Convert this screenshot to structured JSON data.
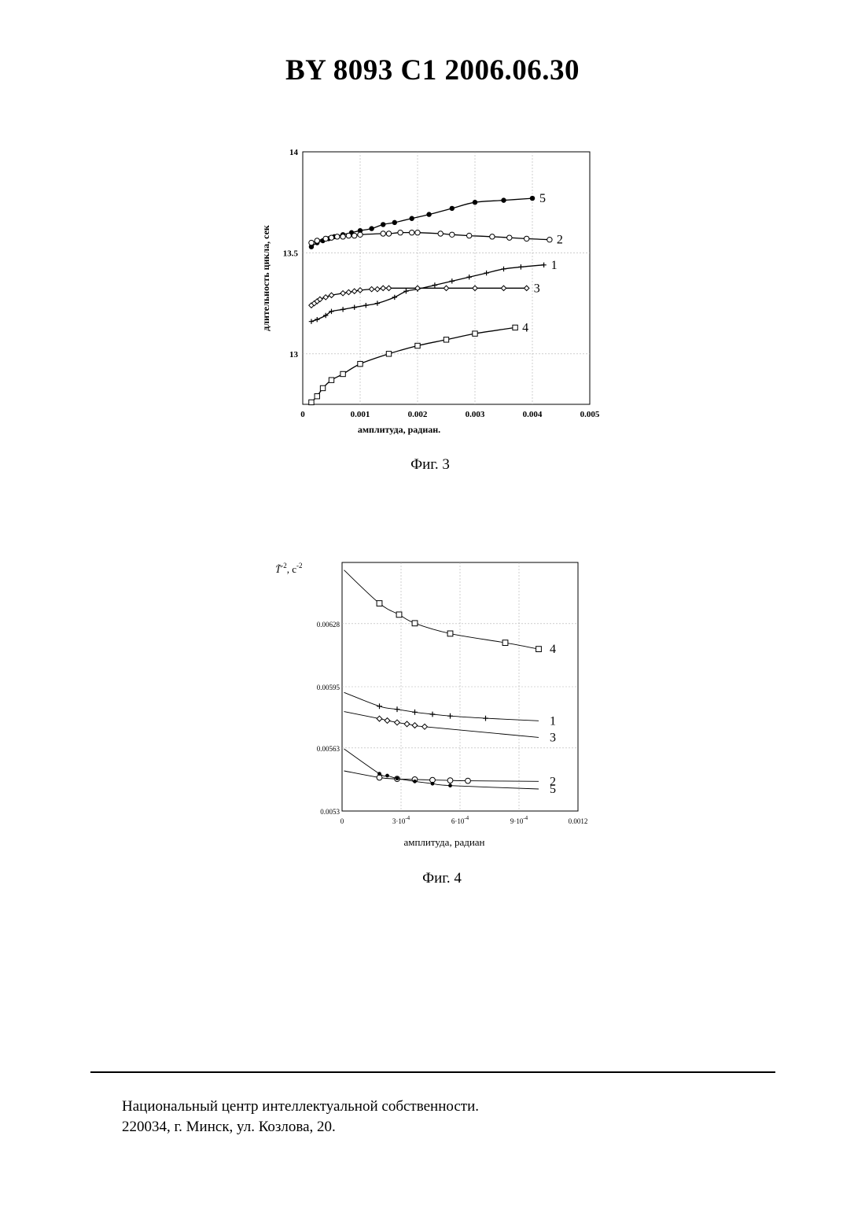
{
  "header": {
    "title": "BY  8093  C1  2006.06.30"
  },
  "figures": [
    {
      "caption": "Фиг. 3"
    },
    {
      "caption": "Фиг. 4"
    }
  ],
  "footer": {
    "line1": "Национальный центр интеллектуальной собственности.",
    "line2": "220034, г. Минск, ул. Козлова, 20."
  },
  "chart_data": [
    {
      "type": "line",
      "xlabel": "амплитуда, радиан.",
      "ylabel": "длительность цикла, сек",
      "xlim": [
        0,
        0.005
      ],
      "ylim": [
        12.75,
        14
      ],
      "x_ticks": [
        "0",
        "0.001",
        "0.002",
        "0.003",
        "0.004",
        "0.005"
      ],
      "x_tick_values": [
        0,
        0.001,
        0.002,
        0.003,
        0.004,
        0.005
      ],
      "y_ticks": [
        "13",
        "13.5",
        "14"
      ],
      "y_tick_values": [
        13,
        13.5,
        14
      ],
      "grid": true,
      "series": [
        {
          "name": "5",
          "marker": "filled-circle",
          "x": [
            0.00015,
            0.00025,
            0.00035,
            0.00045,
            0.00055,
            0.0007,
            0.00085,
            0.001,
            0.0012,
            0.0014,
            0.0016,
            0.0019,
            0.0022,
            0.0026,
            0.003,
            0.0035,
            0.004
          ],
          "y": [
            13.53,
            13.55,
            13.56,
            13.57,
            13.58,
            13.59,
            13.6,
            13.61,
            13.62,
            13.64,
            13.65,
            13.67,
            13.69,
            13.72,
            13.75,
            13.76,
            13.77
          ]
        },
        {
          "name": "2",
          "marker": "open-circle",
          "x": [
            0.00015,
            0.00025,
            0.0004,
            0.0005,
            0.0006,
            0.0007,
            0.0008,
            0.0009,
            0.001,
            0.0014,
            0.0015,
            0.0017,
            0.0019,
            0.002,
            0.0024,
            0.0026,
            0.0029,
            0.0033,
            0.0036,
            0.0039,
            0.0043
          ],
          "y": [
            13.55,
            13.56,
            13.57,
            13.575,
            13.58,
            13.58,
            13.585,
            13.585,
            13.59,
            13.595,
            13.595,
            13.6,
            13.6,
            13.6,
            13.595,
            13.59,
            13.585,
            13.58,
            13.575,
            13.57,
            13.565
          ]
        },
        {
          "name": "1",
          "marker": "plus",
          "x": [
            0.00015,
            0.00025,
            0.0004,
            0.0005,
            0.0007,
            0.0009,
            0.0011,
            0.0013,
            0.0016,
            0.0018,
            0.002,
            0.0023,
            0.0026,
            0.0029,
            0.0032,
            0.0035,
            0.0038,
            0.0042
          ],
          "y": [
            13.16,
            13.17,
            13.19,
            13.21,
            13.22,
            13.23,
            13.24,
            13.25,
            13.28,
            13.31,
            13.32,
            13.34,
            13.36,
            13.38,
            13.4,
            13.42,
            13.43,
            13.44
          ]
        },
        {
          "name": "3",
          "marker": "open-diamond",
          "x": [
            0.00015,
            0.0002,
            0.00025,
            0.0003,
            0.0004,
            0.0005,
            0.0007,
            0.0008,
            0.0009,
            0.001,
            0.0012,
            0.0013,
            0.0014,
            0.0015,
            0.002,
            0.0025,
            0.003,
            0.0035,
            0.0039
          ],
          "y": [
            13.24,
            13.25,
            13.26,
            13.27,
            13.28,
            13.29,
            13.3,
            13.305,
            13.31,
            13.315,
            13.32,
            13.32,
            13.325,
            13.325,
            13.325,
            13.325,
            13.325,
            13.325,
            13.325
          ]
        },
        {
          "name": "4",
          "marker": "open-square",
          "x": [
            0.00015,
            0.00025,
            0.00035,
            0.0005,
            0.0007,
            0.001,
            0.0015,
            0.002,
            0.0025,
            0.003,
            0.0037
          ],
          "y": [
            12.76,
            12.79,
            12.83,
            12.87,
            12.9,
            12.95,
            13.0,
            13.04,
            13.07,
            13.1,
            13.13
          ]
        }
      ]
    },
    {
      "type": "line",
      "xlabel": "амплитуда, радиан",
      "ylabel": "T̃^-2, c^-2",
      "xlim": [
        0,
        0.0012
      ],
      "ylim": [
        0.0053,
        0.0066
      ],
      "x_ticks": [
        "0",
        "3·10^-4",
        "6·10^-4",
        "9·10^-4",
        "0.0012"
      ],
      "x_tick_values": [
        0,
        0.0003,
        0.0006,
        0.0009,
        0.0012
      ],
      "y_ticks": [
        "0.0053",
        "0.00563",
        "0.00595",
        "0.00628"
      ],
      "y_tick_values": [
        0.0053,
        0.00563,
        0.00595,
        0.00628
      ],
      "grid": true,
      "series": [
        {
          "name": "4",
          "marker": "open-square",
          "x": [
            0.00019,
            0.00029,
            0.00037,
            0.00055,
            0.00083,
            0.001
          ],
          "y": [
            0.006386,
            0.006327,
            0.006282,
            0.006228,
            0.00618,
            0.006147
          ]
        },
        {
          "name": "1",
          "marker": "plus",
          "x": [
            0.00019,
            0.00028,
            0.00037,
            0.00046,
            0.00055,
            0.00073
          ],
          "y": [
            0.005848,
            0.005832,
            0.005817,
            0.005806,
            0.005797,
            0.005785
          ]
        },
        {
          "name": "3",
          "marker": "open-diamond",
          "x": [
            0.00019,
            0.00023,
            0.00028,
            0.00033,
            0.00037,
            0.00042
          ],
          "y": [
            0.005783,
            0.005773,
            0.005763,
            0.005755,
            0.005748,
            0.005741
          ]
        },
        {
          "name": "2",
          "marker": "open-circle",
          "x": [
            0.00019,
            0.00028,
            0.00037,
            0.00046,
            0.00055,
            0.00064
          ],
          "y": [
            0.005475,
            0.005468,
            0.005465,
            0.005462,
            0.00546,
            0.005458
          ]
        },
        {
          "name": "5",
          "marker": "filled-dot",
          "x": [
            0.00019,
            0.00023,
            0.00028,
            0.00037,
            0.00046,
            0.00055
          ],
          "y": [
            0.005495,
            0.005485,
            0.00547,
            0.005455,
            0.005443,
            0.005433
          ]
        }
      ]
    }
  ]
}
